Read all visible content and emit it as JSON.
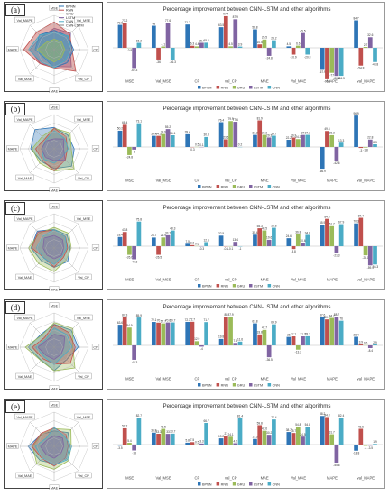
{
  "legend_top": [
    "BPNN",
    "RNN",
    "GRU",
    "LSTM",
    "CNN",
    "CNN-LSTM"
  ],
  "series_colors": {
    "BPNN": "#2e75b6",
    "RNN": "#c0504d",
    "GRU": "#9bbb59",
    "LSTM": "#8064a2",
    "CNN": "#4bacc6",
    "CNN-LSTM": "#7f7f7f"
  },
  "radar_axes": [
    "MSE",
    "Val_MSE",
    "CP",
    "Val_CP",
    "MAE",
    "Val_MAE",
    "MAPE",
    "Val_MAPE"
  ],
  "radar_axes_dense": [
    "MSE",
    "Val_MSE",
    "CP",
    "Val_CP",
    "Val_CP",
    "MAE",
    "Val_MAE",
    "MAPE",
    "Val_MAPE",
    "Val_MAPE"
  ],
  "panels": [
    {
      "label": "(a)",
      "chart_data": {
        "type": "bar",
        "title": "Percentage improvement between CNN-LSTM and other algorithms",
        "categories": [
          "MSE",
          "Val_MSE",
          "CP",
          "val_CP",
          "MAE",
          "Val_MAE",
          "MAPE",
          "val_MAPE"
        ],
        "ylim": [
          -100,
          100
        ],
        "series": [
          {
            "name": "BPNN",
            "values": [
              70.6,
              68.0,
              71.7,
              63.5,
              56.8,
              4.5,
              -67.9,
              84.7
            ]
          },
          {
            "name": "RNN",
            "values": [
              77.2,
              -36.0,
              6.3,
              97.4,
              10.5,
              -20.9,
              -96.9,
              -54.8
            ]
          },
          {
            "name": "GRU",
            "values": [
              -0.8,
              4.1,
              4.4,
              4.5,
              25.5,
              6.6,
              -77.0,
              2.7
            ]
          },
          {
            "name": "LSTM",
            "values": [
              -62.3,
              77.6,
              15.4,
              87.9,
              -24.8,
              45.5,
              -86.6,
              32.6
            ]
          },
          {
            "name": "CNN",
            "values": [
              15.2,
              -36.3,
              15.6,
              3.9,
              23.2,
              -20.8,
              -86.3,
              -43.8
            ]
          }
        ]
      }
    },
    {
      "label": "(b)",
      "chart_data": {
        "type": "bar",
        "title": "Percentage improvement between CNN-LSTM and other algorithms",
        "categories": [
          "MSE",
          "Val_MSE",
          "CP",
          "val_CP",
          "MAE",
          "Val_MAE",
          "MAPE",
          "val_MAPE"
        ],
        "ylim": [
          -100,
          100
        ],
        "series": [
          {
            "name": "BPNN",
            "values": [
              50.2,
              34.4,
              39.4,
              76.4,
              37.2,
              22.2,
              -66.9,
              96.9
            ]
          },
          {
            "name": "RNN",
            "values": [
              68.4,
              34.3,
              -0.3,
              23.6,
              81.9,
              29.2,
              49.3,
              -3.0
            ]
          },
          {
            "name": "GRU",
            "values": [
              -24.8,
              39.9,
              0.5,
              79.9,
              37.3,
              24.3,
              36.3,
              -1.8
            ]
          },
          {
            "name": "LSTM",
            "values": [
              -8.0,
              55.2,
              0.1,
              77.6,
              29.3,
              37.0,
              -42.6,
              22.8
            ]
          },
          {
            "name": "CNN",
            "values": [
              73.1,
              36.1,
              30.8,
              0.2,
              34.7,
              37.3,
              13.3,
              8.3
            ]
          }
        ]
      }
    },
    {
      "label": "(c)",
      "chart_data": {
        "type": "bar",
        "title": "Percentage improvement between CNN-LSTM and other algorithms",
        "categories": [
          "MSE",
          "Val_MSE",
          "CP",
          "val_CP",
          "MAE",
          "Val_MAE",
          "MAPE",
          "val_MAPE"
        ],
        "ylim": [
          -100,
          100
        ],
        "series": [
          {
            "name": "BPNN",
            "values": [
              28.4,
              26.7,
              7.5,
              32.5,
              35.4,
              24.6,
              65.9,
              70.3
            ]
          },
          {
            "name": "RNN",
            "values": [
              43.8,
              -26.5,
              3.3,
              -0.1,
              55.3,
              -8.8,
              84.3,
              87.4
            ]
          },
          {
            "name": "GRU",
            "values": [
              -26.6,
              26.9,
              0.6,
              -0.1,
              48.5,
              36.8,
              61.7,
              -28.1
            ]
          },
          {
            "name": "LSTM",
            "values": [
              -40.3,
              33.7,
              -0.3,
              13.4,
              19.6,
              10.6,
              -21.3,
              -59.1
            ]
          },
          {
            "name": "CNN",
            "values": [
              75.8,
              48.3,
              12.6,
              -1.0,
              56.8,
              34.8,
              67.9,
              -56.3
            ]
          }
        ]
      }
    },
    {
      "label": "(d)",
      "chart_data": {
        "type": "bar",
        "title": "Percentage improvement between CNN-LSTM and other algorithms",
        "categories": [
          "MSE",
          "Val_MSE",
          "CP",
          "val_CP",
          "MAE",
          "Val_MAE",
          "MAPE",
          "val_MAPE"
        ],
        "ylim": [
          -100,
          100
        ],
        "series": [
          {
            "name": "BPNN",
            "values": [
              63.6,
              72.1,
              72.3,
              19.8,
              67.8,
              26.0,
              87.6,
              26.4
            ]
          },
          {
            "name": "RNN",
            "values": [
              87.3,
              70.0,
              72.7,
              88.0,
              33.8,
              27.7,
              80.1,
              3.9
            ]
          },
          {
            "name": "GRU",
            "values": [
              54.9,
              67.7,
              12.9,
              87.9,
              47.7,
              -13.2,
              84.7,
              0.6
            ]
          },
          {
            "name": "LSTM",
            "values": [
              -44.3,
              70.6,
              -4.0,
              7.5,
              -36.5,
              27.7,
              88.7,
              -8.4
            ]
          },
          {
            "name": "CNN",
            "values": [
              85.9,
              70.7,
              71.7,
              11.6,
              64.9,
              28.1,
              76.0,
              2.9
            ]
          }
        ]
      }
    },
    {
      "label": "(e)",
      "chart_data": {
        "type": "bar",
        "title": "Percentage improvement between CNN-LSTM and other algorithms",
        "categories": [
          "MSE",
          "Val_MSE",
          "CP",
          "val_CP",
          "MAE",
          "Val_MAE",
          "MAPE",
          "val_MAPE"
        ],
        "ylim": [
          -100,
          100
        ],
        "series": [
          {
            "name": "BPNN",
            "values": [
              -3.5,
              36.8,
              5.8,
              19.2,
              17.3,
              38.7,
              88.2,
              -18.8
            ]
          },
          {
            "name": "RNN",
            "values": [
              50.2,
              33.3,
              7.5,
              27.0,
              59.8,
              35.7,
              84.8,
              48.6
            ]
          },
          {
            "name": "GRU",
            "values": [
              5.4,
              48.5,
              0.5,
              24.1,
              42.6,
              54.8,
              31.7,
              -4.0
            ]
          },
          {
            "name": "LSTM",
            "values": [
              -18.0,
              33.0,
              3.3,
              4.2,
              30.2,
              24.5,
              -55.6,
              -3.5
            ]
          },
          {
            "name": "CNN",
            "values": [
              82.7,
              33.7,
              66.7,
              81.4,
              77.4,
              54.8,
              82.4,
              1.9
            ]
          }
        ]
      }
    }
  ]
}
